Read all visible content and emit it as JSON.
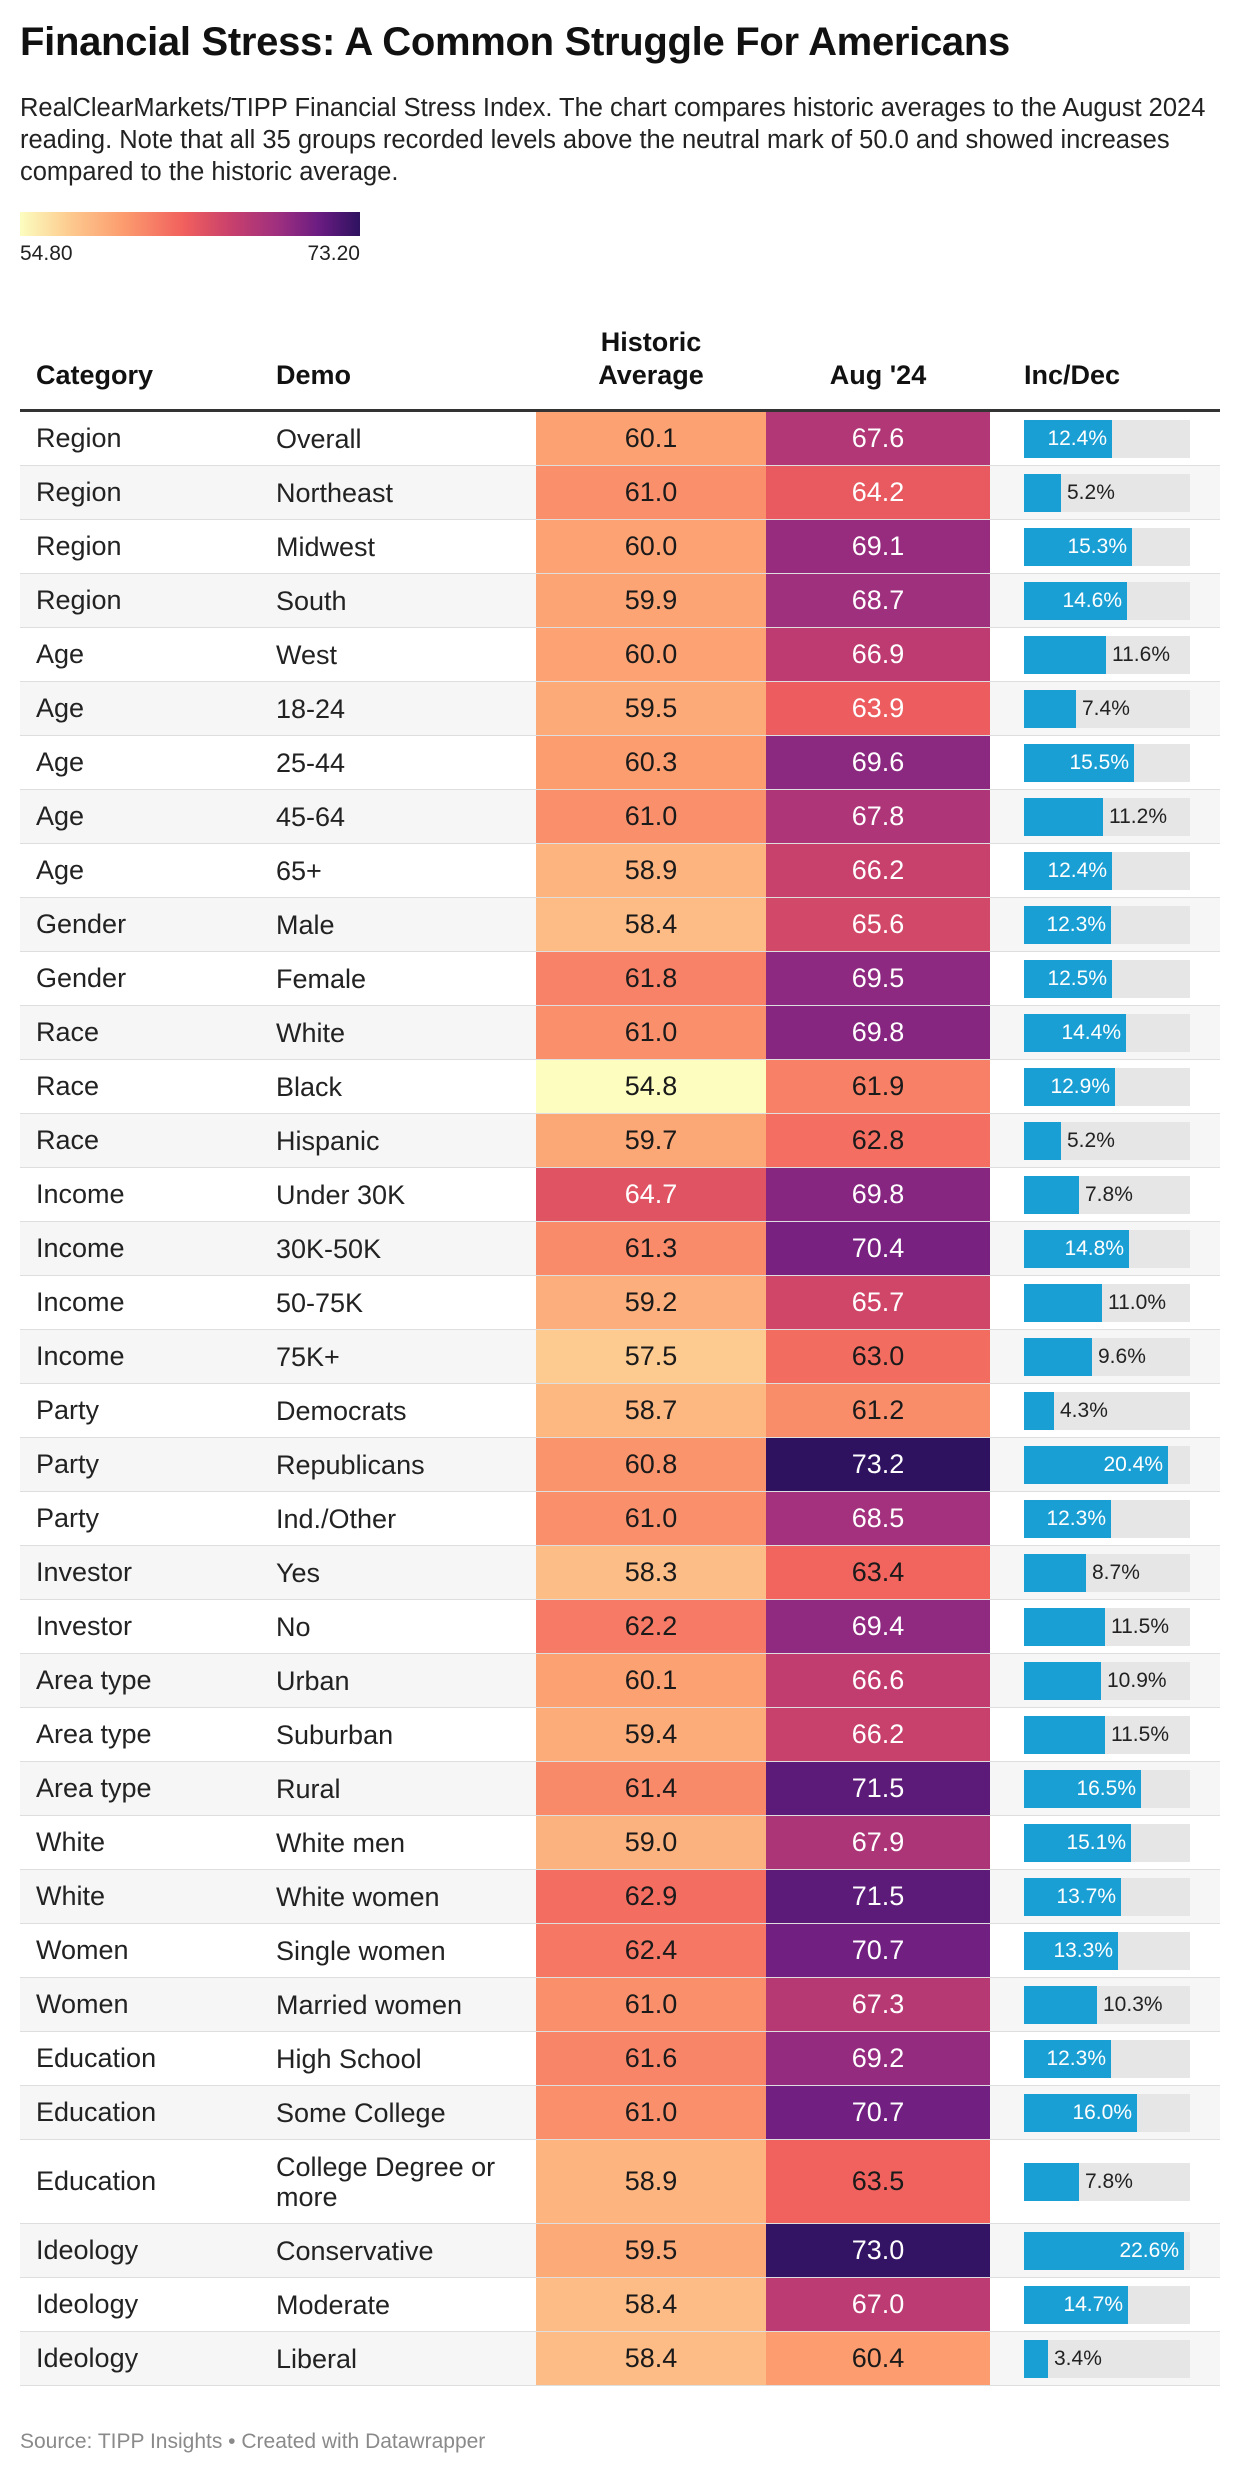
{
  "title": "Financial Stress: A Common Struggle For Americans",
  "subtitle": "RealClearMarkets/TIPP Financial Stress Index. The chart compares historic averages to the August 2024 reading. Note that all 35 groups recorded levels above the neutral mark of 50.0 and showed increases compared to the historic average.",
  "legend": {
    "min_label": "54.80",
    "max_label": "73.20",
    "min": 54.8,
    "max": 73.2
  },
  "colors": {
    "bar": "#1a9fd4",
    "track": "#e6e6e6"
  },
  "columns": {
    "category": "Category",
    "demo": "Demo",
    "historic_line1": "Historic",
    "historic_line2": "Average",
    "aug": "Aug '24",
    "incdec": "Inc/Dec"
  },
  "source": "Source: TIPP Insights • Created with Datawrapper",
  "chart_data": {
    "type": "table",
    "color_scale": {
      "min": 54.8,
      "max": 73.2
    },
    "incdec_max": 22.6,
    "rows": [
      {
        "category": "Region",
        "demo": "Overall",
        "historic": "60.1",
        "aug": "67.6",
        "incdec": "12.4%",
        "inc": 12.4
      },
      {
        "category": "Region",
        "demo": "Northeast",
        "historic": "61.0",
        "aug": "64.2",
        "incdec": "5.2%",
        "inc": 5.2
      },
      {
        "category": "Region",
        "demo": "Midwest",
        "historic": "60.0",
        "aug": "69.1",
        "incdec": "15.3%",
        "inc": 15.3
      },
      {
        "category": "Region",
        "demo": "South",
        "historic": "59.9",
        "aug": "68.7",
        "incdec": "14.6%",
        "inc": 14.6
      },
      {
        "category": "Age",
        "demo": "West",
        "historic": "60.0",
        "aug": "66.9",
        "incdec": "11.6%",
        "inc": 11.6
      },
      {
        "category": "Age",
        "demo": "18-24",
        "historic": "59.5",
        "aug": "63.9",
        "incdec": "7.4%",
        "inc": 7.4
      },
      {
        "category": "Age",
        "demo": "25-44",
        "historic": "60.3",
        "aug": "69.6",
        "incdec": "15.5%",
        "inc": 15.5
      },
      {
        "category": "Age",
        "demo": "45-64",
        "historic": "61.0",
        "aug": "67.8",
        "incdec": "11.2%",
        "inc": 11.2
      },
      {
        "category": "Age",
        "demo": "65+",
        "historic": "58.9",
        "aug": "66.2",
        "incdec": "12.4%",
        "inc": 12.4
      },
      {
        "category": "Gender",
        "demo": "Male",
        "historic": "58.4",
        "aug": "65.6",
        "incdec": "12.3%",
        "inc": 12.3
      },
      {
        "category": "Gender",
        "demo": "Female",
        "historic": "61.8",
        "aug": "69.5",
        "incdec": "12.5%",
        "inc": 12.5
      },
      {
        "category": "Race",
        "demo": "White",
        "historic": "61.0",
        "aug": "69.8",
        "incdec": "14.4%",
        "inc": 14.4
      },
      {
        "category": "Race",
        "demo": "Black",
        "historic": "54.8",
        "aug": "61.9",
        "incdec": "12.9%",
        "inc": 12.9
      },
      {
        "category": "Race",
        "demo": "Hispanic",
        "historic": "59.7",
        "aug": "62.8",
        "incdec": "5.2%",
        "inc": 5.2
      },
      {
        "category": "Income",
        "demo": "Under 30K",
        "historic": "64.7",
        "aug": "69.8",
        "incdec": "7.8%",
        "inc": 7.8
      },
      {
        "category": "Income",
        "demo": "30K-50K",
        "historic": "61.3",
        "aug": "70.4",
        "incdec": "14.8%",
        "inc": 14.8
      },
      {
        "category": "Income",
        "demo": "50-75K",
        "historic": "59.2",
        "aug": "65.7",
        "incdec": "11.0%",
        "inc": 11.0
      },
      {
        "category": "Income",
        "demo": "75K+",
        "historic": "57.5",
        "aug": "63.0",
        "incdec": "9.6%",
        "inc": 9.6
      },
      {
        "category": "Party",
        "demo": "Democrats",
        "historic": "58.7",
        "aug": "61.2",
        "incdec": "4.3%",
        "inc": 4.3
      },
      {
        "category": "Party",
        "demo": "Republicans",
        "historic": "60.8",
        "aug": "73.2",
        "incdec": "20.4%",
        "inc": 20.4
      },
      {
        "category": "Party",
        "demo": "Ind./Other",
        "historic": "61.0",
        "aug": "68.5",
        "incdec": "12.3%",
        "inc": 12.3
      },
      {
        "category": "Investor",
        "demo": "Yes",
        "historic": "58.3",
        "aug": "63.4",
        "incdec": "8.7%",
        "inc": 8.7
      },
      {
        "category": "Investor",
        "demo": "No",
        "historic": "62.2",
        "aug": "69.4",
        "incdec": "11.5%",
        "inc": 11.5
      },
      {
        "category": "Area type",
        "demo": "Urban",
        "historic": "60.1",
        "aug": "66.6",
        "incdec": "10.9%",
        "inc": 10.9
      },
      {
        "category": "Area type",
        "demo": "Suburban",
        "historic": "59.4",
        "aug": "66.2",
        "incdec": "11.5%",
        "inc": 11.5
      },
      {
        "category": "Area type",
        "demo": "Rural",
        "historic": "61.4",
        "aug": "71.5",
        "incdec": "16.5%",
        "inc": 16.5
      },
      {
        "category": "White",
        "demo": "White men",
        "historic": "59.0",
        "aug": "67.9",
        "incdec": "15.1%",
        "inc": 15.1
      },
      {
        "category": "White",
        "demo": "White women",
        "historic": "62.9",
        "aug": "71.5",
        "incdec": "13.7%",
        "inc": 13.7
      },
      {
        "category": "Women",
        "demo": "Single women",
        "historic": "62.4",
        "aug": "70.7",
        "incdec": "13.3%",
        "inc": 13.3
      },
      {
        "category": "Women",
        "demo": "Married women",
        "historic": "61.0",
        "aug": "67.3",
        "incdec": "10.3%",
        "inc": 10.3
      },
      {
        "category": "Education",
        "demo": "High School",
        "historic": "61.6",
        "aug": "69.2",
        "incdec": "12.3%",
        "inc": 12.3
      },
      {
        "category": "Education",
        "demo": "Some College",
        "historic": "61.0",
        "aug": "70.7",
        "incdec": "16.0%",
        "inc": 16.0
      },
      {
        "category": "Education",
        "demo": "College Degree or more",
        "historic": "58.9",
        "aug": "63.5",
        "incdec": "7.8%",
        "inc": 7.8
      },
      {
        "category": "Ideology",
        "demo": "Conservative",
        "historic": "59.5",
        "aug": "73.0",
        "incdec": "22.6%",
        "inc": 22.6
      },
      {
        "category": "Ideology",
        "demo": "Moderate",
        "historic": "58.4",
        "aug": "67.0",
        "incdec": "14.7%",
        "inc": 14.7
      },
      {
        "category": "Ideology",
        "demo": "Liberal",
        "historic": "58.4",
        "aug": "60.4",
        "incdec": "3.4%",
        "inc": 3.4
      }
    ]
  }
}
